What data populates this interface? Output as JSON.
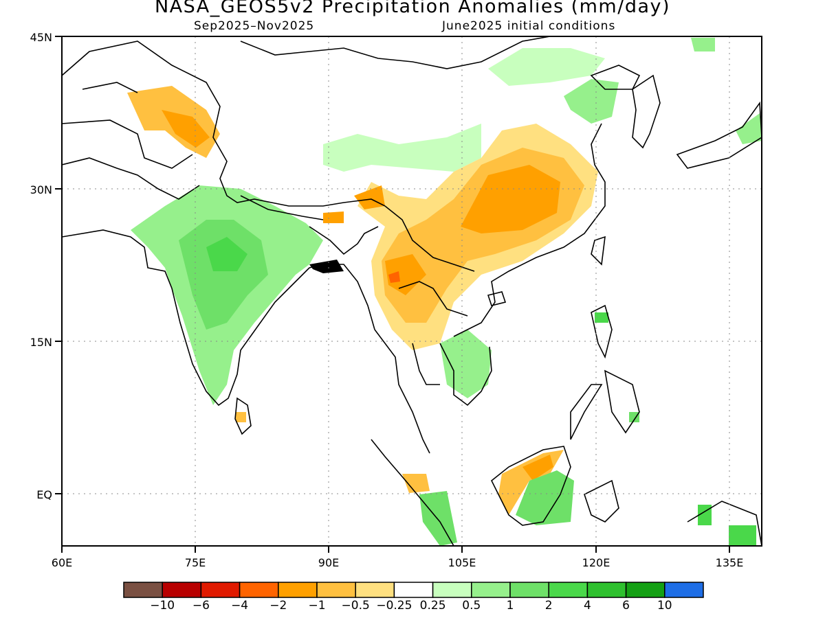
{
  "title": "NASA_GEOS5v2 Precipitation Anomalies (mm/day)",
  "subtitle_left": "Sep2025–Nov2025",
  "subtitle_right": "June2025 initial conditions",
  "axes": {
    "x_ticks": [
      "60E",
      "75E",
      "90E",
      "105E",
      "120E",
      "135E"
    ],
    "y_ticks": [
      "45N",
      "30N",
      "15N",
      "EQ"
    ]
  },
  "colorbar": {
    "colors": [
      "#7a5042",
      "#b80000",
      "#e01a00",
      "#ff6400",
      "#ffa000",
      "#ffc040",
      "#ffe080",
      "#ffffff",
      "#c8ffbe",
      "#96f08c",
      "#6ee068",
      "#4ad84a",
      "#2ec02e",
      "#14a014",
      "#1e6ee6"
    ],
    "labels": [
      "−10",
      "−6",
      "−4",
      "−2",
      "−1",
      "−0.5",
      "−0.25",
      "0.25",
      "0.5",
      "1",
      "2",
      "4",
      "6",
      "10"
    ]
  },
  "colors": {
    "dry_strong": "#ffa000",
    "dry_moderate": "#ffc040",
    "dry_weak": "#ffe080",
    "wet_weak": "#c8ffbe",
    "wet_moderate": "#96f08c",
    "wet_strong": "#6ee068",
    "wet_heavy": "#4ad84a"
  }
}
